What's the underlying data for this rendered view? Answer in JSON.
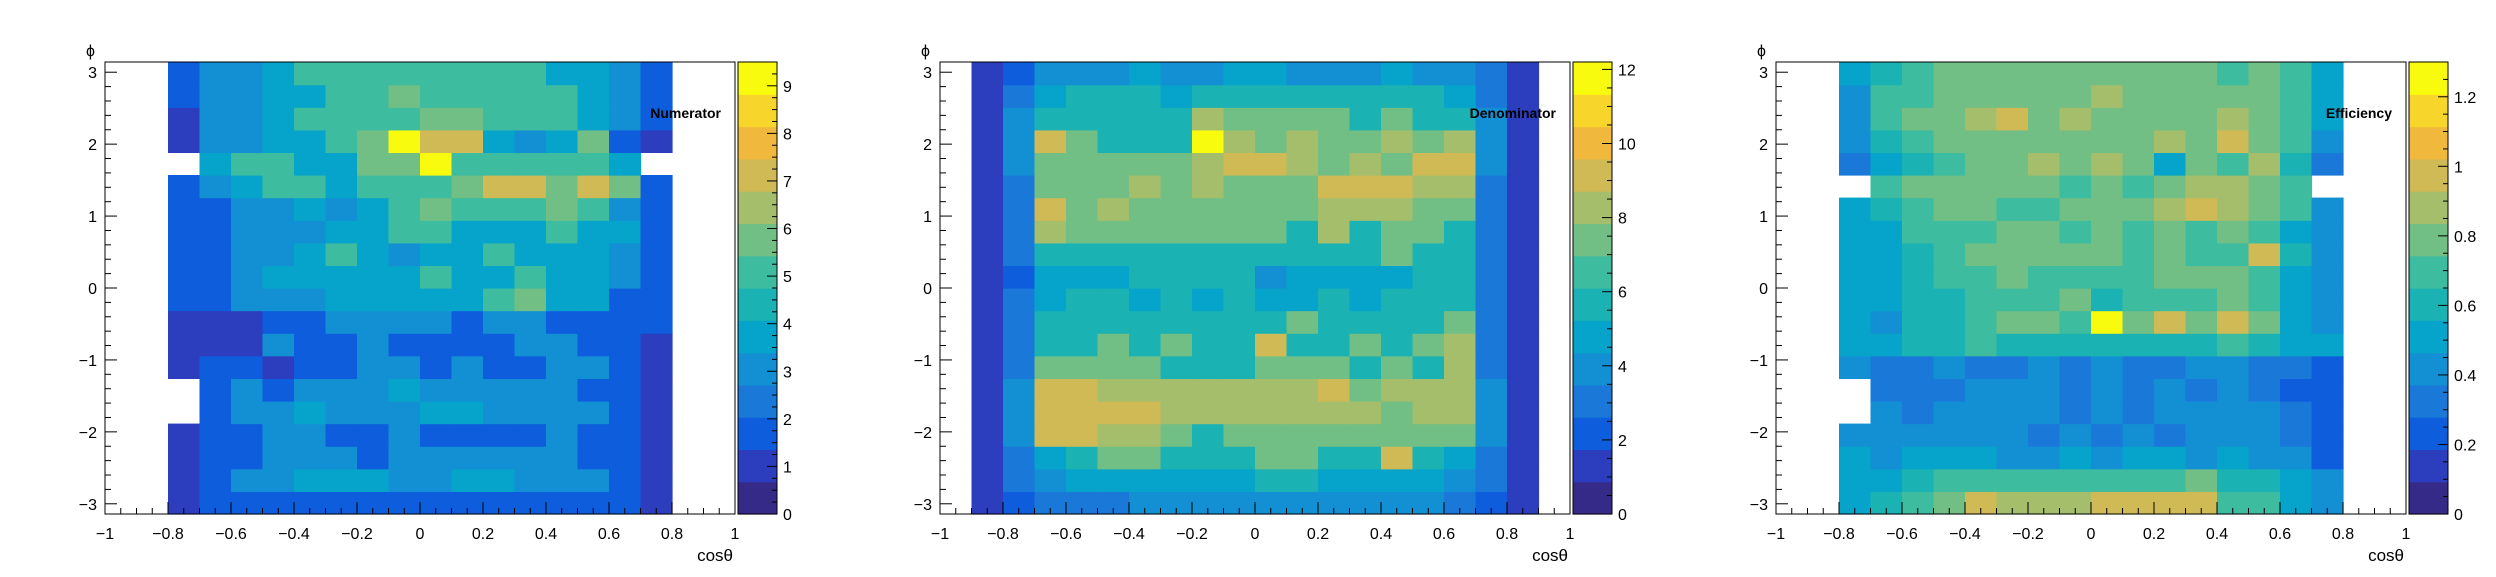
{
  "palette": [
    "#352a87",
    "#2c3dbd",
    "#0e5ddd",
    "#1a78d9",
    "#1390d4",
    "#06a4ca",
    "#1bb2b3",
    "#3ebc9f",
    "#72bf85",
    "#a5be6b",
    "#cfba56",
    "#f0b93d",
    "#f7d52b",
    "#f9fb0e"
  ],
  "chart_data": [
    {
      "type": "heatmap",
      "title": "Numerator",
      "xlabel": "cosθ",
      "ylabel": "ϕ",
      "x_range": [
        -1,
        1
      ],
      "y_range": [
        -3.142,
        3.142
      ],
      "x_ticks": [
        "−1",
        "−0.8",
        "−0.6",
        "−0.4",
        "−0.2",
        "0",
        "0.2",
        "0.4",
        "0.6",
        "0.8",
        "1"
      ],
      "y_ticks": [
        "−3",
        "−2",
        "−1",
        "0",
        "1",
        "2",
        "3"
      ],
      "zlim": [
        0,
        9.5
      ],
      "z_ticks": [
        "0",
        "1",
        "2",
        "3",
        "4",
        "5",
        "6",
        "7",
        "8",
        "9"
      ],
      "x_edges": [
        -0.8,
        -0.7,
        -0.6,
        -0.5,
        -0.4,
        -0.3,
        -0.2,
        -0.1,
        0,
        0.1,
        0.2,
        0.3,
        0.4,
        0.5,
        0.6,
        0.7,
        0.8
      ],
      "y_edges": [
        -3.142,
        -2.827,
        -2.513,
        -2.199,
        -1.885,
        -1.571,
        -1.257,
        -0.942,
        -0.628,
        -0.314,
        0,
        0.314,
        0.628,
        0.942,
        1.257,
        1.571,
        1.885,
        2.199,
        2.513,
        2.827,
        3.142
      ],
      "values": [
        [
          1,
          2,
          2,
          2,
          2,
          2,
          2,
          2,
          2,
          2,
          2,
          2,
          2,
          2,
          2,
          1
        ],
        [
          1,
          2,
          3,
          3,
          4,
          4,
          4,
          3,
          3,
          4,
          4,
          3,
          3,
          3,
          2,
          1
        ],
        [
          1,
          2,
          2,
          3,
          3,
          3,
          2,
          3,
          3,
          3,
          3,
          3,
          3,
          2,
          2,
          1
        ],
        [
          1,
          2,
          2,
          3,
          3,
          2,
          2,
          3,
          2,
          2,
          2,
          2,
          3,
          2,
          2,
          1
        ],
        [
          null,
          2,
          3,
          3,
          4,
          3,
          3,
          3,
          4,
          4,
          3,
          3,
          3,
          3,
          2,
          1
        ],
        [
          null,
          2,
          3,
          2,
          3,
          3,
          3,
          4,
          3,
          3,
          3,
          3,
          3,
          2,
          2,
          1
        ],
        [
          1,
          2,
          2,
          1,
          2,
          2,
          3,
          3,
          2,
          3,
          2,
          2,
          3,
          3,
          2,
          1
        ],
        [
          1,
          1,
          1,
          3,
          2,
          2,
          3,
          2,
          2,
          2,
          2,
          3,
          3,
          2,
          2,
          1
        ],
        [
          1,
          1,
          1,
          2,
          2,
          3,
          3,
          3,
          3,
          2,
          3,
          3,
          2,
          2,
          2,
          2
        ],
        [
          2,
          2,
          3,
          3,
          3,
          4,
          4,
          4,
          4,
          4,
          5,
          6,
          4,
          4,
          2,
          2
        ],
        [
          2,
          2,
          3,
          4,
          4,
          4,
          4,
          4,
          5,
          4,
          4,
          5,
          4,
          4,
          3,
          2
        ],
        [
          2,
          2,
          3,
          3,
          4,
          5,
          4,
          3,
          4,
          4,
          5,
          4,
          4,
          4,
          3,
          2
        ],
        [
          2,
          2,
          3,
          3,
          3,
          4,
          4,
          5,
          5,
          4,
          4,
          4,
          5,
          4,
          4,
          2
        ],
        [
          2,
          2,
          3,
          3,
          4,
          3,
          4,
          5,
          6,
          5,
          5,
          5,
          6,
          5,
          3,
          2
        ],
        [
          2,
          3,
          4,
          5,
          5,
          4,
          5,
          5,
          5,
          6,
          7,
          7,
          6,
          7,
          6,
          2
        ],
        [
          null,
          4,
          5,
          5,
          4,
          4,
          6,
          6,
          9,
          5,
          5,
          5,
          5,
          5,
          4,
          null
        ],
        [
          1,
          3,
          3,
          4,
          4,
          5,
          6,
          9,
          7,
          7,
          4,
          3,
          4,
          6,
          2,
          1
        ],
        [
          1,
          3,
          3,
          4,
          5,
          5,
          5,
          5,
          6,
          6,
          5,
          5,
          5,
          4,
          3,
          2
        ],
        [
          2,
          3,
          3,
          4,
          4,
          5,
          5,
          6,
          5,
          5,
          5,
          5,
          5,
          4,
          3,
          2
        ],
        [
          2,
          3,
          3,
          4,
          5,
          5,
          5,
          5,
          5,
          5,
          5,
          5,
          4,
          4,
          3,
          2
        ]
      ]
    },
    {
      "type": "heatmap",
      "title": "Denominator",
      "xlabel": "cosθ",
      "ylabel": "ϕ",
      "x_range": [
        -1,
        1
      ],
      "y_range": [
        -3.142,
        3.142
      ],
      "x_ticks": [
        "−1",
        "−0.8",
        "−0.6",
        "−0.4",
        "−0.2",
        "0",
        "0.2",
        "0.4",
        "0.6",
        "0.8",
        "1"
      ],
      "y_ticks": [
        "−3",
        "−2",
        "−1",
        "0",
        "1",
        "2",
        "3"
      ],
      "zlim": [
        0,
        12.2
      ],
      "z_ticks": [
        "0",
        "2",
        "4",
        "6",
        "8",
        "10",
        "12"
      ],
      "x_edges": [
        -0.9,
        -0.8,
        -0.7,
        -0.6,
        -0.5,
        -0.4,
        -0.3,
        -0.2,
        -0.1,
        0,
        0.1,
        0.2,
        0.3,
        0.4,
        0.5,
        0.6,
        0.7,
        0.8,
        0.9
      ],
      "y_edges": [
        -3.142,
        -2.827,
        -2.513,
        -2.199,
        -1.885,
        -1.571,
        -1.257,
        -0.942,
        -0.628,
        -0.314,
        0,
        0.314,
        0.628,
        0.942,
        1.257,
        1.571,
        1.885,
        2.199,
        2.513,
        2.827,
        3.142
      ],
      "values": [
        [
          1,
          2,
          3,
          3,
          3,
          4,
          4,
          4,
          4,
          4,
          4,
          4,
          4,
          4,
          4,
          3,
          2,
          1
        ],
        [
          1,
          3,
          4,
          5,
          5,
          5,
          5,
          5,
          5,
          6,
          6,
          5,
          5,
          5,
          5,
          4,
          3,
          1
        ],
        [
          1,
          3,
          5,
          6,
          7,
          7,
          6,
          6,
          6,
          7,
          7,
          6,
          6,
          9,
          6,
          5,
          3,
          1
        ],
        [
          1,
          4,
          9,
          9,
          8,
          8,
          7,
          6,
          7,
          7,
          7,
          7,
          7,
          7,
          7,
          7,
          4,
          1
        ],
        [
          1,
          4,
          9,
          9,
          9,
          9,
          8,
          8,
          8,
          8,
          8,
          8,
          8,
          7,
          8,
          8,
          4,
          1
        ],
        [
          1,
          4,
          9,
          9,
          8,
          8,
          8,
          8,
          8,
          8,
          8,
          9,
          7,
          8,
          8,
          8,
          4,
          1
        ],
        [
          1,
          3,
          7,
          7,
          7,
          7,
          6,
          6,
          6,
          7,
          7,
          7,
          6,
          7,
          6,
          8,
          3,
          1
        ],
        [
          1,
          3,
          6,
          6,
          7,
          6,
          7,
          6,
          6,
          9,
          6,
          6,
          7,
          6,
          7,
          8,
          3,
          1
        ],
        [
          1,
          3,
          6,
          6,
          6,
          6,
          6,
          6,
          6,
          6,
          7,
          6,
          6,
          6,
          6,
          7,
          3,
          1
        ],
        [
          1,
          3,
          5,
          6,
          6,
          5,
          6,
          5,
          6,
          5,
          5,
          6,
          5,
          6,
          6,
          6,
          3,
          1
        ],
        [
          1,
          2,
          5,
          5,
          5,
          6,
          6,
          6,
          6,
          4,
          5,
          5,
          5,
          5,
          6,
          6,
          3,
          1
        ],
        [
          1,
          3,
          6,
          6,
          6,
          6,
          6,
          6,
          6,
          6,
          6,
          6,
          6,
          7,
          6,
          6,
          3,
          1
        ],
        [
          1,
          3,
          8,
          7,
          7,
          7,
          7,
          7,
          7,
          7,
          6,
          8,
          6,
          7,
          7,
          6,
          3,
          1
        ],
        [
          1,
          3,
          9,
          7,
          8,
          7,
          7,
          7,
          7,
          7,
          7,
          8,
          8,
          8,
          7,
          7,
          3,
          1
        ],
        [
          1,
          3,
          7,
          7,
          7,
          8,
          7,
          8,
          7,
          7,
          7,
          9,
          9,
          9,
          8,
          8,
          3,
          1
        ],
        [
          1,
          4,
          7,
          7,
          7,
          7,
          7,
          8,
          9,
          9,
          8,
          7,
          8,
          7,
          9,
          9,
          4,
          1
        ],
        [
          1,
          4,
          9,
          7,
          6,
          6,
          6,
          12,
          8,
          7,
          8,
          7,
          7,
          8,
          7,
          8,
          4,
          1
        ],
        [
          1,
          4,
          6,
          6,
          6,
          6,
          6,
          8,
          7,
          7,
          7,
          7,
          6,
          7,
          6,
          6,
          4,
          1
        ],
        [
          1,
          3,
          5,
          6,
          6,
          6,
          5,
          6,
          6,
          6,
          6,
          6,
          6,
          6,
          6,
          5,
          3,
          1
        ],
        [
          1,
          2,
          4,
          4,
          4,
          5,
          4,
          4,
          5,
          5,
          4,
          4,
          4,
          5,
          4,
          4,
          3,
          1
        ]
      ]
    },
    {
      "type": "heatmap",
      "title": "Efficiency",
      "xlabel": "cosθ",
      "ylabel": "ϕ",
      "x_range": [
        -1,
        1
      ],
      "y_range": [
        -3.142,
        3.142
      ],
      "x_ticks": [
        "−1",
        "−0.8",
        "−0.6",
        "−0.4",
        "−0.2",
        "0",
        "0.2",
        "0.4",
        "0.6",
        "0.8",
        "1"
      ],
      "y_ticks": [
        "−3",
        "−2",
        "−1",
        "0",
        "1",
        "2",
        "3"
      ],
      "zlim": [
        0,
        1.3
      ],
      "z_ticks": [
        "0",
        "0.2",
        "0.4",
        "0.6",
        "0.8",
        "1",
        "1.2"
      ],
      "x_edges": [
        -0.8,
        -0.7,
        -0.6,
        -0.5,
        -0.4,
        -0.3,
        -0.2,
        -0.1,
        0,
        0.1,
        0.2,
        0.3,
        0.4,
        0.5,
        0.6,
        0.7,
        0.8
      ],
      "y_edges": [
        -3.142,
        -2.827,
        -2.513,
        -2.199,
        -1.885,
        -1.571,
        -1.257,
        -0.942,
        -0.628,
        -0.314,
        0,
        0.314,
        0.628,
        0.942,
        1.257,
        1.571,
        1.885,
        2.199,
        2.513,
        2.827,
        3.142
      ],
      "values": [
        [
          0.55,
          0.6,
          0.7,
          0.8,
          0.95,
          0.9,
          0.9,
          0.9,
          1.0,
          1.0,
          1.0,
          1.0,
          0.7,
          0.7,
          0.5,
          0.4
        ],
        [
          0.5,
          0.5,
          0.6,
          0.65,
          0.7,
          0.7,
          0.7,
          0.7,
          0.7,
          0.7,
          0.7,
          0.75,
          0.6,
          0.6,
          0.5,
          0.4
        ],
        [
          0.5,
          0.4,
          0.5,
          0.5,
          0.5,
          0.45,
          0.4,
          0.5,
          0.45,
          0.5,
          0.5,
          0.45,
          0.5,
          0.45,
          0.4,
          0.2
        ],
        [
          0.45,
          0.4,
          0.4,
          0.4,
          0.4,
          0.4,
          0.35,
          0.4,
          0.35,
          0.4,
          0.35,
          0.4,
          0.4,
          0.4,
          0.3,
          0.2
        ],
        [
          null,
          0.4,
          0.35,
          0.4,
          0.45,
          0.4,
          0.4,
          0.35,
          0.45,
          0.35,
          0.4,
          0.4,
          0.45,
          0.4,
          0.3,
          0.2
        ],
        [
          null,
          0.3,
          0.35,
          0.35,
          0.4,
          0.4,
          0.4,
          0.3,
          0.4,
          0.35,
          0.4,
          0.35,
          0.4,
          0.35,
          0.25,
          0.2
        ],
        [
          0.4,
          0.3,
          0.35,
          0.4,
          0.35,
          0.35,
          0.4,
          0.3,
          0.45,
          0.35,
          0.35,
          0.4,
          0.4,
          0.35,
          0.3,
          0.2
        ],
        [
          0.5,
          0.5,
          0.6,
          0.6,
          0.65,
          0.6,
          0.6,
          0.6,
          0.6,
          0.6,
          0.6,
          0.6,
          0.65,
          0.6,
          0.55,
          0.5
        ],
        [
          0.5,
          0.45,
          0.6,
          0.6,
          0.7,
          0.8,
          0.8,
          0.7,
          1.3,
          0.8,
          0.95,
          0.8,
          0.95,
          0.8,
          0.55,
          0.4
        ],
        [
          0.5,
          0.5,
          0.6,
          0.6,
          0.65,
          0.7,
          0.7,
          0.75,
          0.6,
          0.7,
          0.7,
          0.7,
          0.75,
          0.65,
          0.55,
          0.45
        ],
        [
          0.5,
          0.5,
          0.6,
          0.65,
          0.7,
          0.8,
          0.7,
          0.7,
          0.7,
          0.7,
          0.75,
          0.8,
          0.75,
          0.65,
          0.55,
          0.4
        ],
        [
          0.5,
          0.5,
          0.6,
          0.7,
          0.8,
          0.75,
          0.8,
          0.75,
          0.8,
          0.7,
          0.75,
          0.7,
          0.7,
          1.0,
          0.6,
          0.4
        ],
        [
          0.5,
          0.55,
          0.65,
          0.7,
          0.7,
          0.75,
          0.75,
          0.7,
          0.75,
          0.7,
          0.75,
          0.7,
          0.75,
          0.65,
          0.55,
          0.4
        ],
        [
          0.5,
          0.6,
          0.7,
          0.75,
          0.75,
          0.7,
          0.7,
          0.75,
          0.75,
          0.8,
          0.9,
          1.0,
          0.9,
          0.8,
          0.7,
          0.45
        ],
        [
          null,
          0.65,
          0.75,
          0.8,
          0.8,
          0.75,
          0.8,
          0.7,
          0.8,
          0.7,
          0.8,
          0.9,
          0.85,
          0.8,
          0.65,
          null
        ],
        [
          0.3,
          0.5,
          0.6,
          0.65,
          0.75,
          0.8,
          0.85,
          0.8,
          0.85,
          0.75,
          0.55,
          0.8,
          0.7,
          0.85,
          0.6,
          0.3
        ],
        [
          0.4,
          0.6,
          0.7,
          0.75,
          0.8,
          0.8,
          0.8,
          0.75,
          0.8,
          0.8,
          0.9,
          0.8,
          1.0,
          0.8,
          0.65,
          0.45
        ],
        [
          0.4,
          0.65,
          0.75,
          0.8,
          0.9,
          1.0,
          0.8,
          0.85,
          0.8,
          0.8,
          0.8,
          0.8,
          0.85,
          0.8,
          0.7,
          0.5
        ],
        [
          0.45,
          0.65,
          0.7,
          0.75,
          0.75,
          0.8,
          0.75,
          0.8,
          0.85,
          0.8,
          0.75,
          0.8,
          0.75,
          0.75,
          0.7,
          0.5
        ],
        [
          0.5,
          0.6,
          0.7,
          0.75,
          0.8,
          0.8,
          0.8,
          0.8,
          0.8,
          0.8,
          0.75,
          0.8,
          0.7,
          0.75,
          0.65,
          0.5
        ]
      ]
    }
  ]
}
